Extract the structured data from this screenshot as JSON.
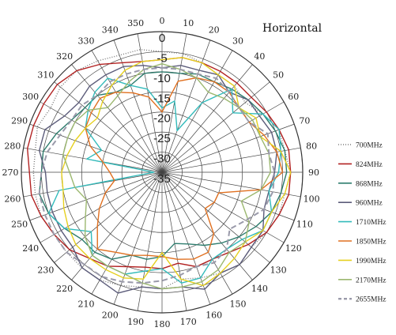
{
  "chart_data": {
    "type": "polar-line",
    "title": "Horizontal",
    "angular_ticks": [
      "0",
      "10",
      "20",
      "30",
      "40",
      "50",
      "60",
      "70",
      "80",
      "90",
      "100",
      "110",
      "120",
      "130",
      "140",
      "150",
      "160",
      "170",
      "180",
      "190",
      "200",
      "210",
      "220",
      "230",
      "240",
      "250",
      "260",
      "270",
      "280",
      "290",
      "300",
      "310",
      "320",
      "330",
      "340",
      "350"
    ],
    "radial_ticks": [
      0,
      -5,
      -10,
      -15,
      -20,
      -25,
      -30,
      -35
    ],
    "rlim": [
      -35,
      0
    ],
    "angle_step": 10,
    "grid": true,
    "legend_position": "right",
    "series": [
      {
        "name": "700MHz",
        "color": "#7a7a7a",
        "dash": "1,2",
        "values": [
          -5,
          -5,
          -6,
          -7,
          -7,
          -8,
          -6,
          -4,
          -4,
          -3,
          -4,
          -4,
          -5,
          -6,
          -5,
          -6,
          -7,
          -8,
          -6,
          -6,
          -5,
          -4,
          -4,
          -4,
          -4,
          -3,
          -3,
          -3,
          -3,
          -2,
          -3,
          -2,
          -2,
          -3,
          -4,
          -4
        ]
      },
      {
        "name": "824MHz",
        "color": "#b22222",
        "dash": "",
        "values": [
          -7,
          -6,
          -6,
          -6,
          -6,
          -6,
          -5,
          -4,
          -3,
          -3,
          -3,
          -4,
          -5,
          -7,
          -9,
          -10,
          -10,
          -12,
          -11,
          -11,
          -10,
          -8,
          -7,
          -5,
          -4,
          -3,
          -2,
          -2,
          -1,
          -1,
          -1,
          -1,
          -2,
          -4,
          -6,
          -7
        ]
      },
      {
        "name": "868MHz",
        "color": "#2e7d6e",
        "dash": "",
        "values": [
          -10,
          -10,
          -9,
          -9,
          -8,
          -7,
          -6,
          -5,
          -4,
          -4,
          -5,
          -6,
          -8,
          -10,
          -12,
          -14,
          -16,
          -17,
          -14,
          -13,
          -13,
          -10,
          -9,
          -9,
          -7,
          -5,
          -4,
          -5,
          -5,
          -7,
          -9,
          -10,
          -10,
          -12,
          -12,
          -10
        ]
      },
      {
        "name": "960MHz",
        "color": "#5c5c7a",
        "dash": "",
        "values": [
          -9,
          -8,
          -8,
          -7,
          -9,
          -7,
          -7,
          -6,
          -6,
          -7,
          -8,
          -8,
          -6,
          -6,
          -5,
          -6,
          -4,
          -6,
          -6,
          -6,
          -3,
          -4,
          -4,
          -6,
          -6,
          -6,
          -6,
          -6,
          -4,
          -4,
          -7,
          -8,
          -7,
          -7,
          -7,
          -8
        ]
      },
      {
        "name": "1710MHz",
        "color": "#33bbbb",
        "dash": "",
        "values": [
          -19,
          -17,
          -24,
          -15,
          -8,
          -12,
          -6,
          -4,
          -5,
          -6,
          -8,
          -6,
          -6,
          -9,
          -10,
          -10,
          -7,
          -7,
          -11,
          -10,
          -8,
          -8,
          -8,
          -12,
          -7,
          -5,
          -9,
          -33,
          -16,
          -19,
          -13,
          -11,
          -9,
          -8,
          -12,
          -14
        ]
      },
      {
        "name": "1850MHz",
        "color": "#e07020",
        "dash": "",
        "values": [
          -20,
          -12,
          -10,
          -9,
          -9,
          -10,
          -10,
          -8,
          -6,
          -5,
          -10,
          -20,
          -20,
          -21,
          -15,
          -12,
          -12,
          -13,
          -14,
          -14,
          -13,
          -12,
          -10,
          -14,
          -17,
          -20,
          -23,
          -22,
          -20,
          -16,
          -13,
          -12,
          -11,
          -12,
          -14,
          -16
        ]
      },
      {
        "name": "1990MHz",
        "color": "#e6d020",
        "dash": "",
        "values": [
          -7,
          -6,
          -6,
          -7,
          -7,
          -10,
          -8,
          -9,
          -5,
          -3,
          -4,
          -6,
          -6,
          -8,
          -7,
          -6,
          -5,
          -8,
          -15,
          -8,
          -7,
          -7,
          -7,
          -7,
          -8,
          -9,
          -10,
          -10,
          -11,
          -12,
          -13,
          -14,
          -12,
          -10,
          -8,
          -7
        ]
      },
      {
        "name": "2170MHz",
        "color": "#9cb870",
        "dash": "",
        "values": [
          -8,
          -9,
          -10,
          -12,
          -11,
          -10,
          -9,
          -9,
          -8,
          -8,
          -10,
          -14,
          -10,
          -8,
          -9,
          -7,
          -6,
          -6,
          -6,
          -7,
          -8,
          -8,
          -8,
          -10,
          -13,
          -15,
          -13,
          -12,
          -10,
          -10,
          -10,
          -11,
          -14,
          -13,
          -11,
          -9
        ]
      },
      {
        "name": "2655MHz",
        "color": "#9a9aaa",
        "dash": "7,4",
        "values": [
          -9,
          -9,
          -9,
          -8,
          -9,
          -10,
          -10,
          -7,
          -8,
          -7,
          -7,
          -8,
          -11,
          -13,
          -10,
          -9,
          -10,
          -9,
          -8,
          -7,
          -6,
          -5,
          -5,
          -4,
          -4,
          -4,
          -4,
          -5,
          -6,
          -8,
          -9,
          -9,
          -10,
          -9,
          -9,
          -9
        ]
      }
    ]
  }
}
